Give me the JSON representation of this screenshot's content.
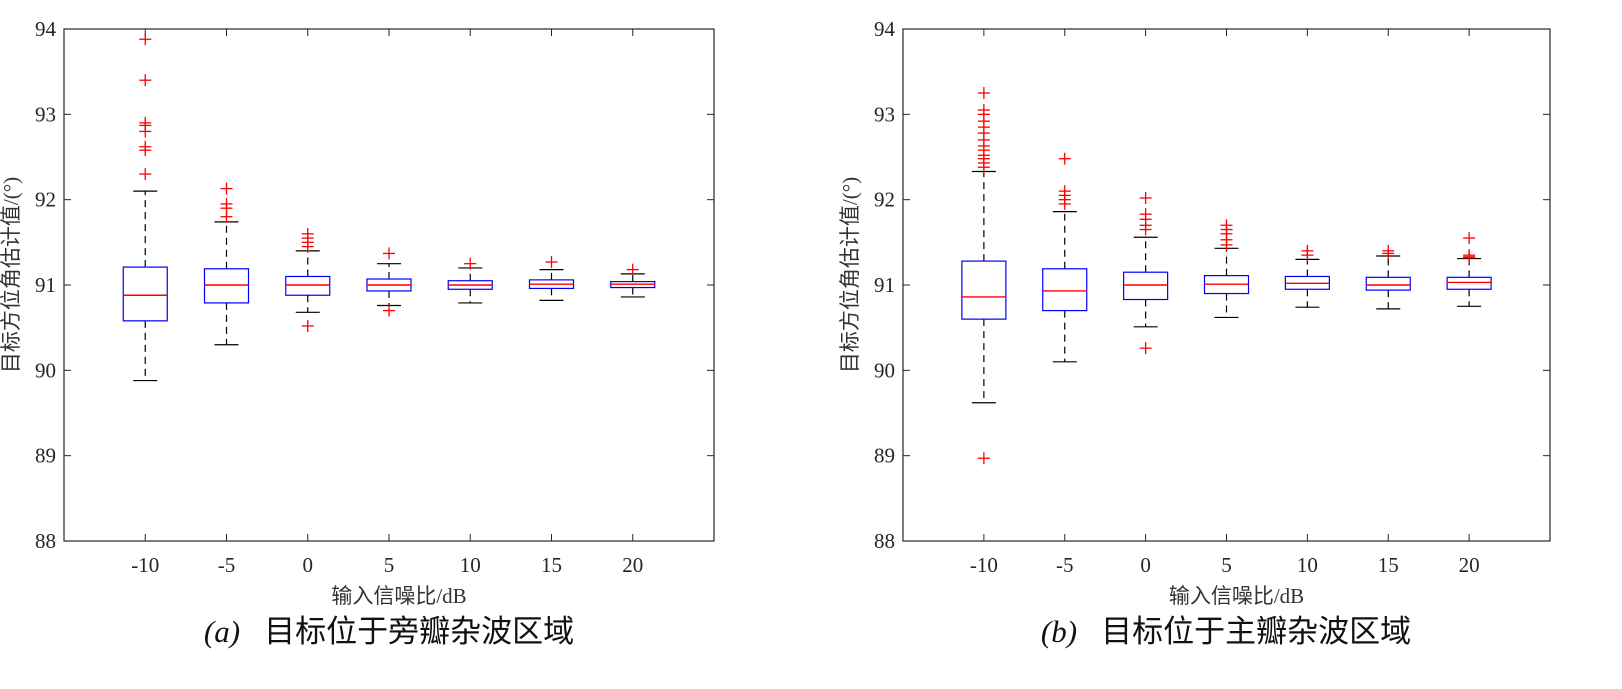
{
  "chart_data": [
    {
      "type": "box",
      "caption_tag": "(a)",
      "caption_text": "目标位于旁瓣杂波区域",
      "xlabel": "输入信噪比/dB",
      "ylabel": "目标方位角估计值/(°)",
      "ylim": [
        88,
        94
      ],
      "yticks": [
        "88",
        "89",
        "90",
        "91",
        "92",
        "93",
        "94"
      ],
      "categories": [
        "-10",
        "-5",
        "0",
        "5",
        "10",
        "15",
        "20"
      ],
      "colors": {
        "box": "#0000ff",
        "median": "#ff0000",
        "whisker": "#000000",
        "outlier": "#ff0000",
        "axis": "#262626"
      },
      "boxes": [
        {
          "q1": 90.58,
          "median": 90.88,
          "q3": 91.21,
          "low": 89.88,
          "high": 92.1,
          "outliers": [
            92.3,
            92.58,
            92.62,
            92.8,
            92.87,
            92.9,
            93.4,
            93.88
          ]
        },
        {
          "q1": 90.79,
          "median": 91.0,
          "q3": 91.19,
          "low": 90.3,
          "high": 91.74,
          "outliers": [
            91.8,
            91.9,
            91.95,
            92.13
          ]
        },
        {
          "q1": 90.88,
          "median": 91.0,
          "q3": 91.1,
          "low": 90.68,
          "high": 91.4,
          "outliers": [
            90.52,
            91.45,
            91.5,
            91.55,
            91.6
          ]
        },
        {
          "q1": 90.93,
          "median": 91.0,
          "q3": 91.07,
          "low": 90.76,
          "high": 91.25,
          "outliers": [
            90.7,
            91.37
          ]
        },
        {
          "q1": 90.95,
          "median": 91.0,
          "q3": 91.05,
          "low": 90.79,
          "high": 91.2,
          "outliers": [
            91.25
          ]
        },
        {
          "q1": 90.96,
          "median": 91.01,
          "q3": 91.06,
          "low": 90.82,
          "high": 91.18,
          "outliers": [
            91.27
          ]
        },
        {
          "q1": 90.97,
          "median": 91.01,
          "q3": 91.04,
          "low": 90.86,
          "high": 91.13,
          "outliers": [
            91.18
          ]
        }
      ]
    },
    {
      "type": "box",
      "caption_tag": "(b)",
      "caption_text": "目标位于主瓣杂波区域",
      "xlabel": "输入信噪比/dB",
      "ylabel": "目标方位角估计值/(°)",
      "ylim": [
        88,
        94
      ],
      "yticks": [
        "88",
        "89",
        "90",
        "91",
        "92",
        "93",
        "94"
      ],
      "categories": [
        "-10",
        "-5",
        "0",
        "5",
        "10",
        "15",
        "20"
      ],
      "colors": {
        "box": "#0000ff",
        "median": "#ff0000",
        "whisker": "#000000",
        "outlier": "#ff0000",
        "axis": "#262626"
      },
      "boxes": [
        {
          "q1": 90.6,
          "median": 90.86,
          "q3": 91.28,
          "low": 89.62,
          "high": 92.33,
          "outliers": [
            88.97,
            92.38,
            92.43,
            92.48,
            92.52,
            92.58,
            92.63,
            92.7,
            92.78,
            92.85,
            92.92,
            93.0,
            93.05,
            93.25
          ]
        },
        {
          "q1": 90.7,
          "median": 90.93,
          "q3": 91.19,
          "low": 90.1,
          "high": 91.86,
          "outliers": [
            91.95,
            92.0,
            92.05,
            92.1,
            92.48
          ]
        },
        {
          "q1": 90.83,
          "median": 91.0,
          "q3": 91.15,
          "low": 90.51,
          "high": 91.56,
          "outliers": [
            90.26,
            91.65,
            91.7,
            91.77,
            91.83,
            92.02
          ]
        },
        {
          "q1": 90.9,
          "median": 91.01,
          "q3": 91.11,
          "low": 90.62,
          "high": 91.43,
          "outliers": [
            91.47,
            91.53,
            91.6,
            91.65,
            91.7
          ]
        },
        {
          "q1": 90.95,
          "median": 91.02,
          "q3": 91.1,
          "low": 90.74,
          "high": 91.3,
          "outliers": [
            91.35,
            91.4
          ]
        },
        {
          "q1": 90.94,
          "median": 91.0,
          "q3": 91.09,
          "low": 90.72,
          "high": 91.34,
          "outliers": [
            91.37,
            91.4
          ]
        },
        {
          "q1": 90.95,
          "median": 91.03,
          "q3": 91.09,
          "low": 90.75,
          "high": 91.31,
          "outliers": [
            91.32,
            91.33,
            91.35,
            91.55
          ]
        }
      ]
    }
  ]
}
